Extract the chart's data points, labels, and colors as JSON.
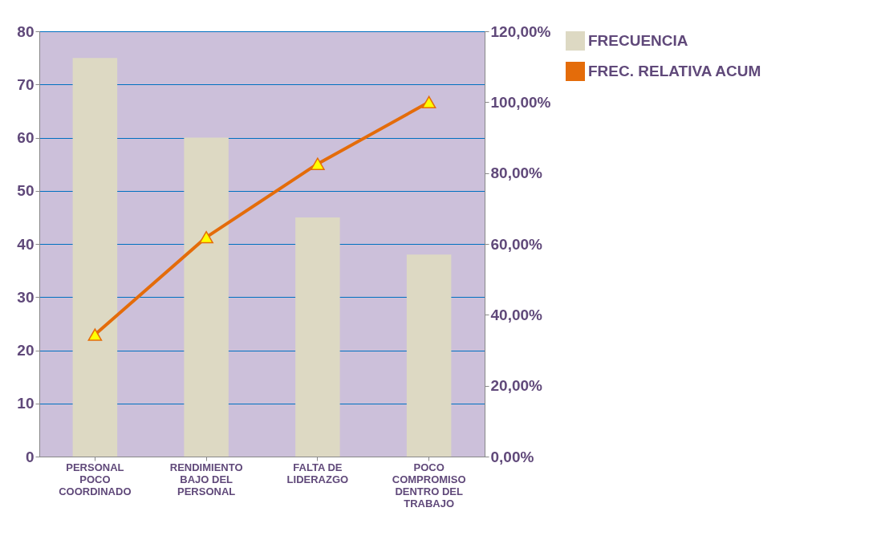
{
  "chart_data": {
    "type": "bar",
    "categories": [
      "PERSONAL\nPOCO\nCOORDINADO",
      "RENDIMIENTO\nBAJO DEL\nPERSONAL",
      "FALTA DE\nLIDERAZGO",
      "POCO\nCOMPROMISO\nDENTRO DEL\nTRABAJO"
    ],
    "series": [
      {
        "name": "FRECUENCIA",
        "color": "#ddd9c3",
        "values": [
          75,
          60,
          45,
          38
        ]
      },
      {
        "name": "FREC. RELATIVA ACUM",
        "type": "line",
        "axis": "y2",
        "color": "#e46c0a",
        "values": [
          34.4,
          61.9,
          82.6,
          100
        ]
      }
    ],
    "ylim": [
      0,
      80
    ],
    "yticks": [
      0,
      10,
      20,
      30,
      40,
      50,
      60,
      70,
      80
    ],
    "y2lim": [
      0,
      120
    ],
    "y2ticks": [
      {
        "value": 0,
        "label": "0,00%"
      },
      {
        "value": 20,
        "label": "20,00%"
      },
      {
        "value": 40,
        "label": "40,00%"
      },
      {
        "value": 60,
        "label": "60,00%"
      },
      {
        "value": 80,
        "label": "80,00%"
      },
      {
        "value": 100,
        "label": "100,00%"
      },
      {
        "value": 120,
        "label": "120,00%"
      }
    ],
    "grid": "y",
    "legend": "right",
    "marker": "triangle"
  }
}
